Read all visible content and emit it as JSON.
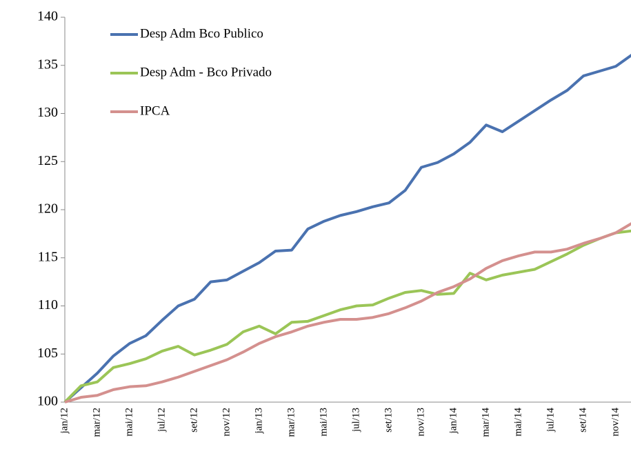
{
  "chart_data": {
    "type": "line",
    "categories": [
      "jan/12",
      null,
      "mar/12",
      null,
      "mai/12",
      null,
      "jul/12",
      null,
      "set/12",
      null,
      "nov/12",
      null,
      "jan/13",
      null,
      "mar/13",
      null,
      "mai/13",
      null,
      "jul/13",
      null,
      "set/13",
      null,
      "nov/13",
      null,
      "jan/14",
      null,
      "mar/14",
      null,
      "mai/14",
      null,
      "jul/14",
      null,
      "set/14",
      null,
      "nov/14",
      null
    ],
    "series": [
      {
        "name": "Desp Adm Bco Publico",
        "color": "#4a72b0",
        "values": [
          100,
          101.5,
          103,
          104.8,
          106.1,
          106.9,
          108.5,
          110,
          110.7,
          112.5,
          112.7,
          113.6,
          114.5,
          115.7,
          115.8,
          118,
          118.8,
          119.4,
          119.8,
          120.3,
          120.7,
          122,
          124.4,
          124.9,
          125.8,
          127,
          128.8,
          128.1,
          129.2,
          130.3,
          131.4,
          132.4,
          133.9,
          134.4,
          134.9,
          136.1
        ]
      },
      {
        "name": "Desp Adm - Bco Privado",
        "color": "#9bc557",
        "values": [
          100,
          101.7,
          102.1,
          103.6,
          104,
          104.5,
          105.3,
          105.8,
          104.9,
          105.4,
          106,
          107.3,
          107.9,
          107.1,
          108.3,
          108.4,
          109,
          109.6,
          110,
          110.1,
          110.8,
          111.4,
          111.6,
          111.2,
          111.3,
          113.4,
          112.7,
          113.2,
          113.5,
          113.8,
          114.6,
          115.4,
          116.3,
          117,
          117.6,
          117.8
        ]
      },
      {
        "name": "IPCA",
        "color": "#d4908e",
        "values": [
          100,
          100.5,
          100.7,
          101.3,
          101.6,
          101.7,
          102.1,
          102.6,
          103.2,
          103.8,
          104.4,
          105.2,
          106.1,
          106.8,
          107.3,
          107.9,
          108.3,
          108.6,
          108.6,
          108.8,
          109.2,
          109.8,
          110.5,
          111.4,
          112,
          112.8,
          113.9,
          114.7,
          115.2,
          115.6,
          115.6,
          115.9,
          116.5,
          117,
          117.6,
          118.6
        ]
      }
    ],
    "ylim": [
      100,
      140
    ],
    "yticks": [
      100,
      105,
      110,
      115,
      120,
      125,
      130,
      135,
      140
    ],
    "grid": false,
    "legend": "upper left"
  }
}
